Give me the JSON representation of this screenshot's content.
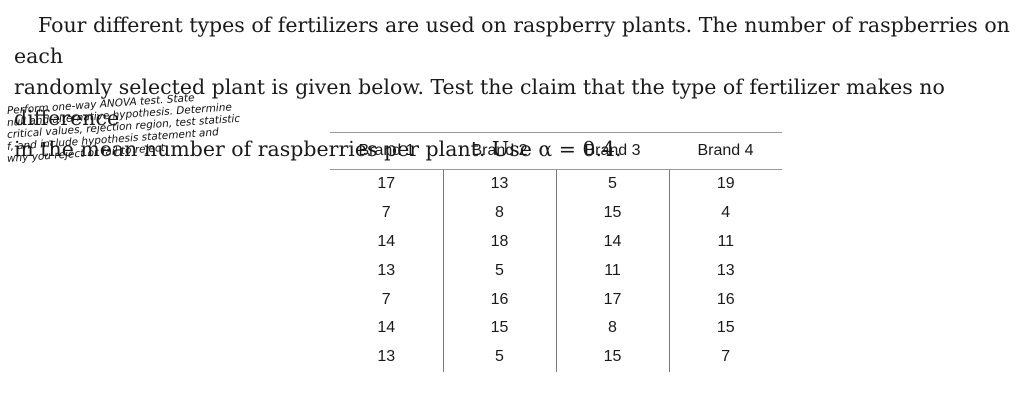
{
  "problem": {
    "line1": "Four different types of fertilizers are used on raspberry plants. The number of raspberries on each",
    "line2": "randomly selected plant is given below. Test the claim that the type of fertilizer makes no difference",
    "line3": "in the mean number of raspberries per plant. Use α = 0.4."
  },
  "handwritten_note": {
    "line1": "Perform one-way ANOVA test. State",
    "line2": "null and alternative hypothesis. Determine",
    "line3": "critical values, rejection region, test statistic",
    "line4": "f, and include hypothesis statement and",
    "line5": "why you reject or fail to reject"
  },
  "table": {
    "headers": [
      "Brand 1",
      "Brand 2",
      "Brand 3",
      "Brand 4"
    ],
    "rows": [
      [
        "17",
        "13",
        "5",
        "19"
      ],
      [
        "7",
        "8",
        "15",
        "4"
      ],
      [
        "14",
        "18",
        "14",
        "11"
      ],
      [
        "13",
        "5",
        "11",
        "13"
      ],
      [
        "7",
        "16",
        "17",
        "16"
      ],
      [
        "14",
        "15",
        "8",
        "15"
      ],
      [
        "13",
        "5",
        "15",
        "7"
      ]
    ]
  }
}
